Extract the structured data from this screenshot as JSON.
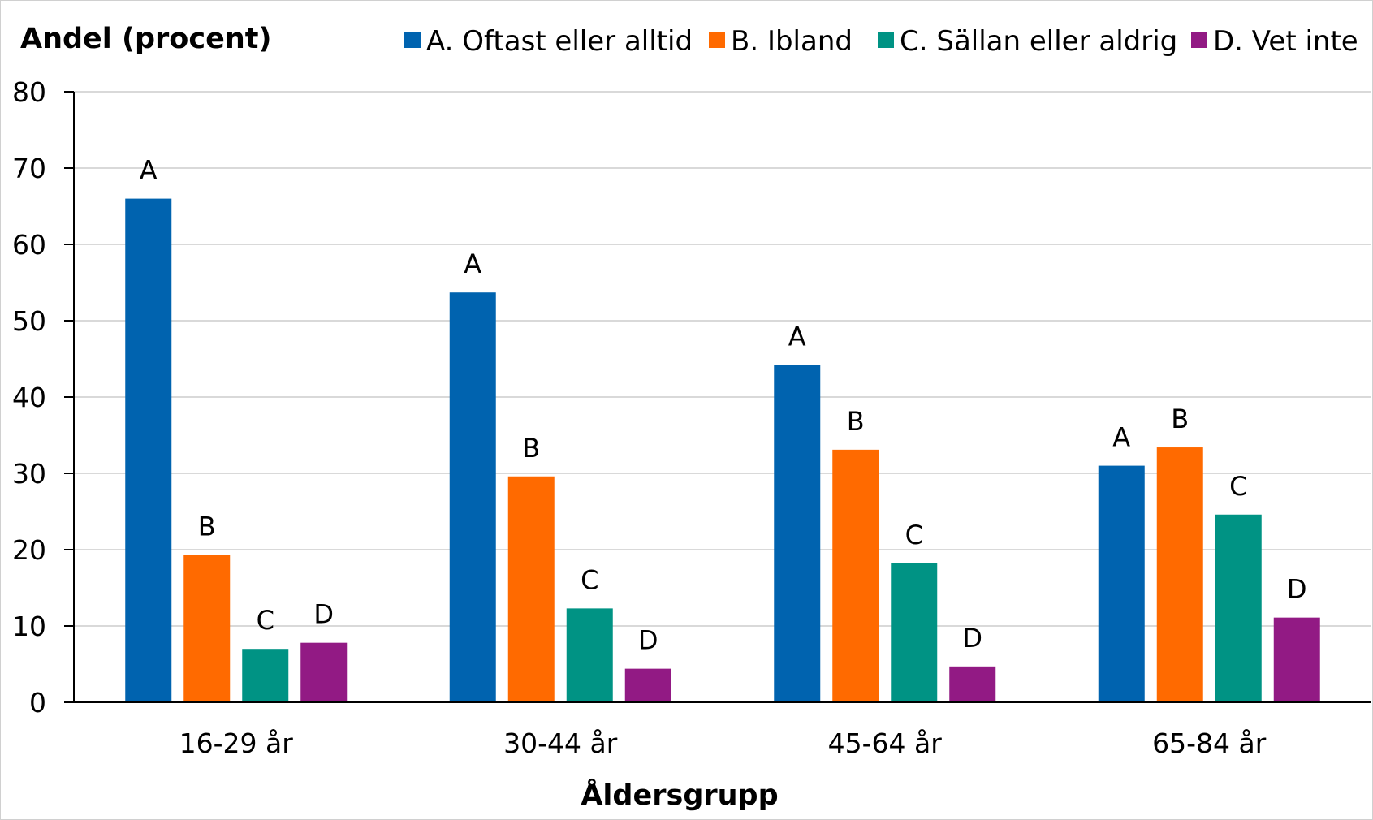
{
  "chart_data": {
    "type": "bar",
    "ylabel": "Andel (procent)",
    "xlabel": "Åldersgrupp",
    "ylim": [
      0,
      80
    ],
    "yticks": [
      0,
      10,
      20,
      30,
      40,
      50,
      60,
      70,
      80
    ],
    "grid": true,
    "legend_position": "top",
    "categories": [
      "16-29 år",
      "30-44 år",
      "45-64 år",
      "65-84 år"
    ],
    "series": [
      {
        "name": "A. Oftast eller alltid",
        "label": "A",
        "color": "#0063AF",
        "values": [
          66,
          53.7,
          44.2,
          31
        ]
      },
      {
        "name": "B. Ibland",
        "label": "B",
        "color": "#FF6A00",
        "values": [
          19.3,
          29.6,
          33.1,
          33.4
        ]
      },
      {
        "name": "C. Sällan eller aldrig",
        "label": "C",
        "color": "#009384",
        "values": [
          7,
          12.3,
          18.2,
          24.6
        ]
      },
      {
        "name": "D. Vet inte",
        "label": "D",
        "color": "#921A84",
        "values": [
          7.8,
          4.4,
          4.7,
          11.1
        ]
      }
    ]
  }
}
